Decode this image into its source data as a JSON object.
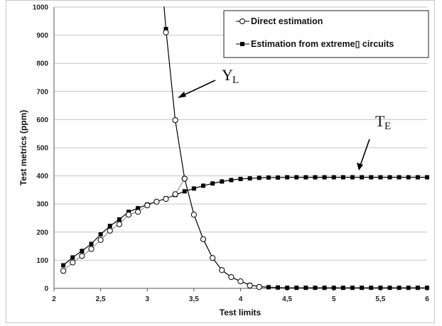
{
  "chart_data": {
    "type": "line",
    "title": "",
    "xlabel": "Test limits",
    "ylabel": "Test metrics (ppm)",
    "xlim": [
      2,
      6
    ],
    "ylim": [
      0,
      1000
    ],
    "x_ticks": [
      "2",
      "2,5",
      "3",
      "3,5",
      "4",
      "4,5",
      "5",
      "5,5",
      "6"
    ],
    "y_ticks": [
      "0",
      "100",
      "200",
      "300",
      "400",
      "500",
      "600",
      "700",
      "800",
      "900",
      "1000"
    ],
    "grid": true,
    "legend_position": "top-right",
    "series": [
      {
        "name": "Direct estimation",
        "marker": "open-circle",
        "color": "#000000",
        "x": [
          2.1,
          2.2,
          2.3,
          2.4,
          2.5,
          2.6,
          2.7,
          2.8,
          2.9,
          3.0,
          3.1,
          3.2,
          3.3,
          3.4,
          3.2,
          3.3,
          3.4,
          3.5,
          3.6,
          3.7,
          3.8,
          3.9,
          4.0,
          4.1,
          4.2
        ],
        "y": [
          62,
          92,
          115,
          140,
          172,
          205,
          228,
          262,
          272,
          295,
          308,
          318,
          335,
          390,
          910,
          598,
          390,
          262,
          175,
          108,
          65,
          40,
          25,
          10,
          5
        ]
      },
      {
        "name": "Estimation from extreme▯ circuits",
        "marker": "filled-square",
        "color": "#000000",
        "curves": [
          {
            "label": "T_E",
            "x": [
              2.1,
              2.2,
              2.3,
              2.4,
              2.5,
              2.6,
              2.7,
              2.8,
              2.9,
              3.0,
              3.1,
              3.2,
              3.3,
              3.4,
              3.5,
              3.6,
              3.7,
              3.8,
              3.9,
              4.0,
              4.1,
              4.2,
              4.3,
              4.4,
              4.5,
              4.6,
              4.7,
              4.8,
              4.9,
              5.0,
              5.1,
              5.2,
              5.3,
              5.4,
              5.5,
              5.6,
              5.7,
              5.8,
              5.9,
              6.0
            ],
            "y": [
              82,
              110,
              133,
              158,
              192,
              222,
              245,
              272,
              285,
              298,
              308,
              320,
              332,
              345,
              355,
              365,
              373,
              380,
              385,
              389,
              391,
              393,
              394,
              394,
              395,
              395,
              395,
              395,
              395,
              395,
              395,
              395,
              395,
              395,
              395,
              395,
              395,
              395,
              395,
              395
            ]
          },
          {
            "label": "Y_L",
            "x": [
              3.2,
              3.3,
              3.4,
              3.5,
              3.6,
              3.7,
              3.8,
              3.9,
              4.0,
              4.1,
              4.2,
              4.3,
              4.4,
              4.5,
              4.6,
              4.7,
              4.8,
              4.9,
              5.0,
              5.1,
              5.2,
              5.3,
              5.4,
              5.5,
              5.6,
              5.7,
              5.8,
              5.9,
              6.0
            ],
            "y": [
              922,
              598,
              390,
              262,
              175,
              108,
              65,
              40,
              25,
              12,
              6,
              4,
              3,
              2,
              2,
              2,
              2,
              2,
              2,
              2,
              2,
              2,
              2,
              2,
              2,
              2,
              2,
              2,
              2
            ]
          }
        ]
      }
    ],
    "annotations": [
      {
        "text": "Y",
        "subscript": "L"
      },
      {
        "text": "T",
        "subscript": "E"
      }
    ]
  }
}
